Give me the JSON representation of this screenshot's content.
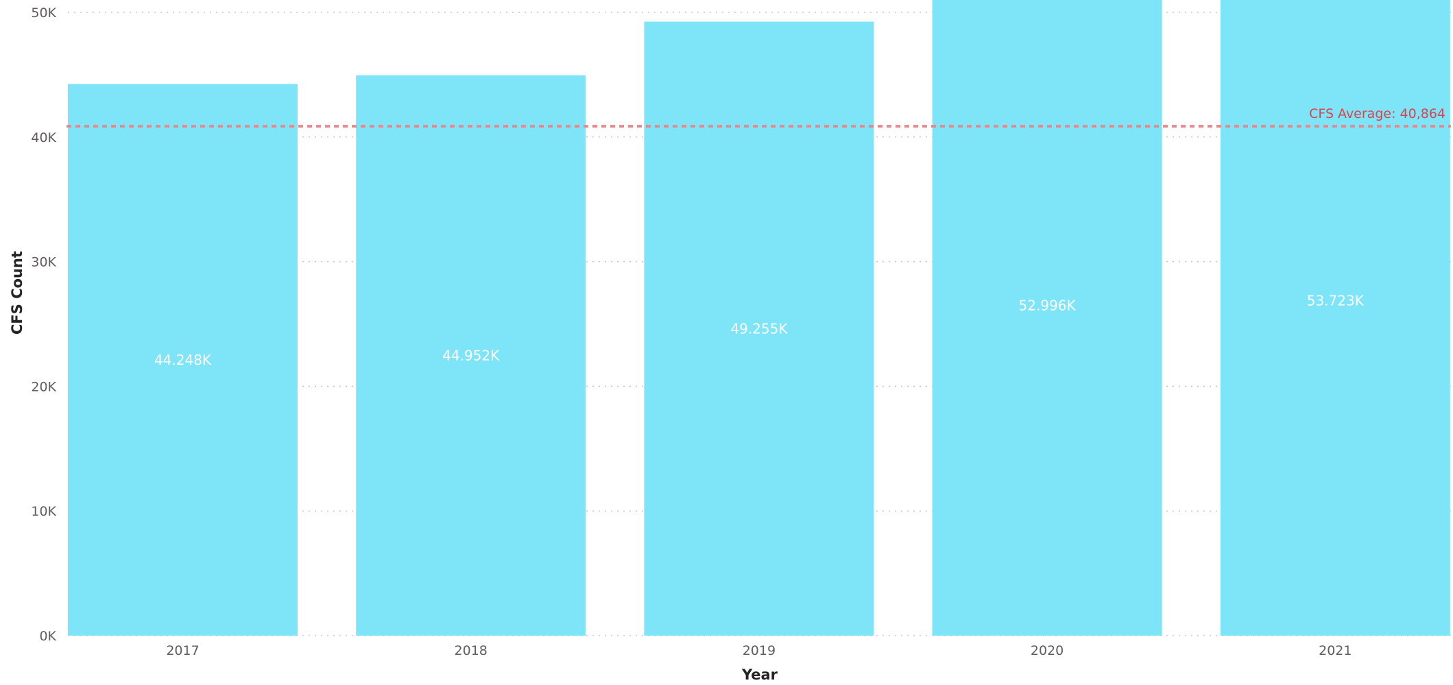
{
  "chart_data": {
    "type": "bar",
    "title": "",
    "xlabel": "Year",
    "ylabel": "CFS Count",
    "categories": [
      "2017",
      "2018",
      "2019",
      "2020",
      "2021"
    ],
    "values": [
      44248,
      44952,
      49255,
      52996,
      53723
    ],
    "data_labels": [
      "44.248K",
      "44.952K",
      "49.255K",
      "52.996K",
      "53.723K"
    ],
    "ylim": [
      0,
      50000
    ],
    "yticks": [
      0,
      10000,
      20000,
      30000,
      40000,
      50000
    ],
    "ytick_labels": [
      "0K",
      "10K",
      "20K",
      "30K",
      "40K",
      "50K"
    ],
    "grid": true,
    "reference_line": {
      "value": 40864,
      "label": "CFS Average: 40,864",
      "color": "#e8878c",
      "label_color": "#d64550"
    },
    "bar_color": "#7ee4f8"
  }
}
